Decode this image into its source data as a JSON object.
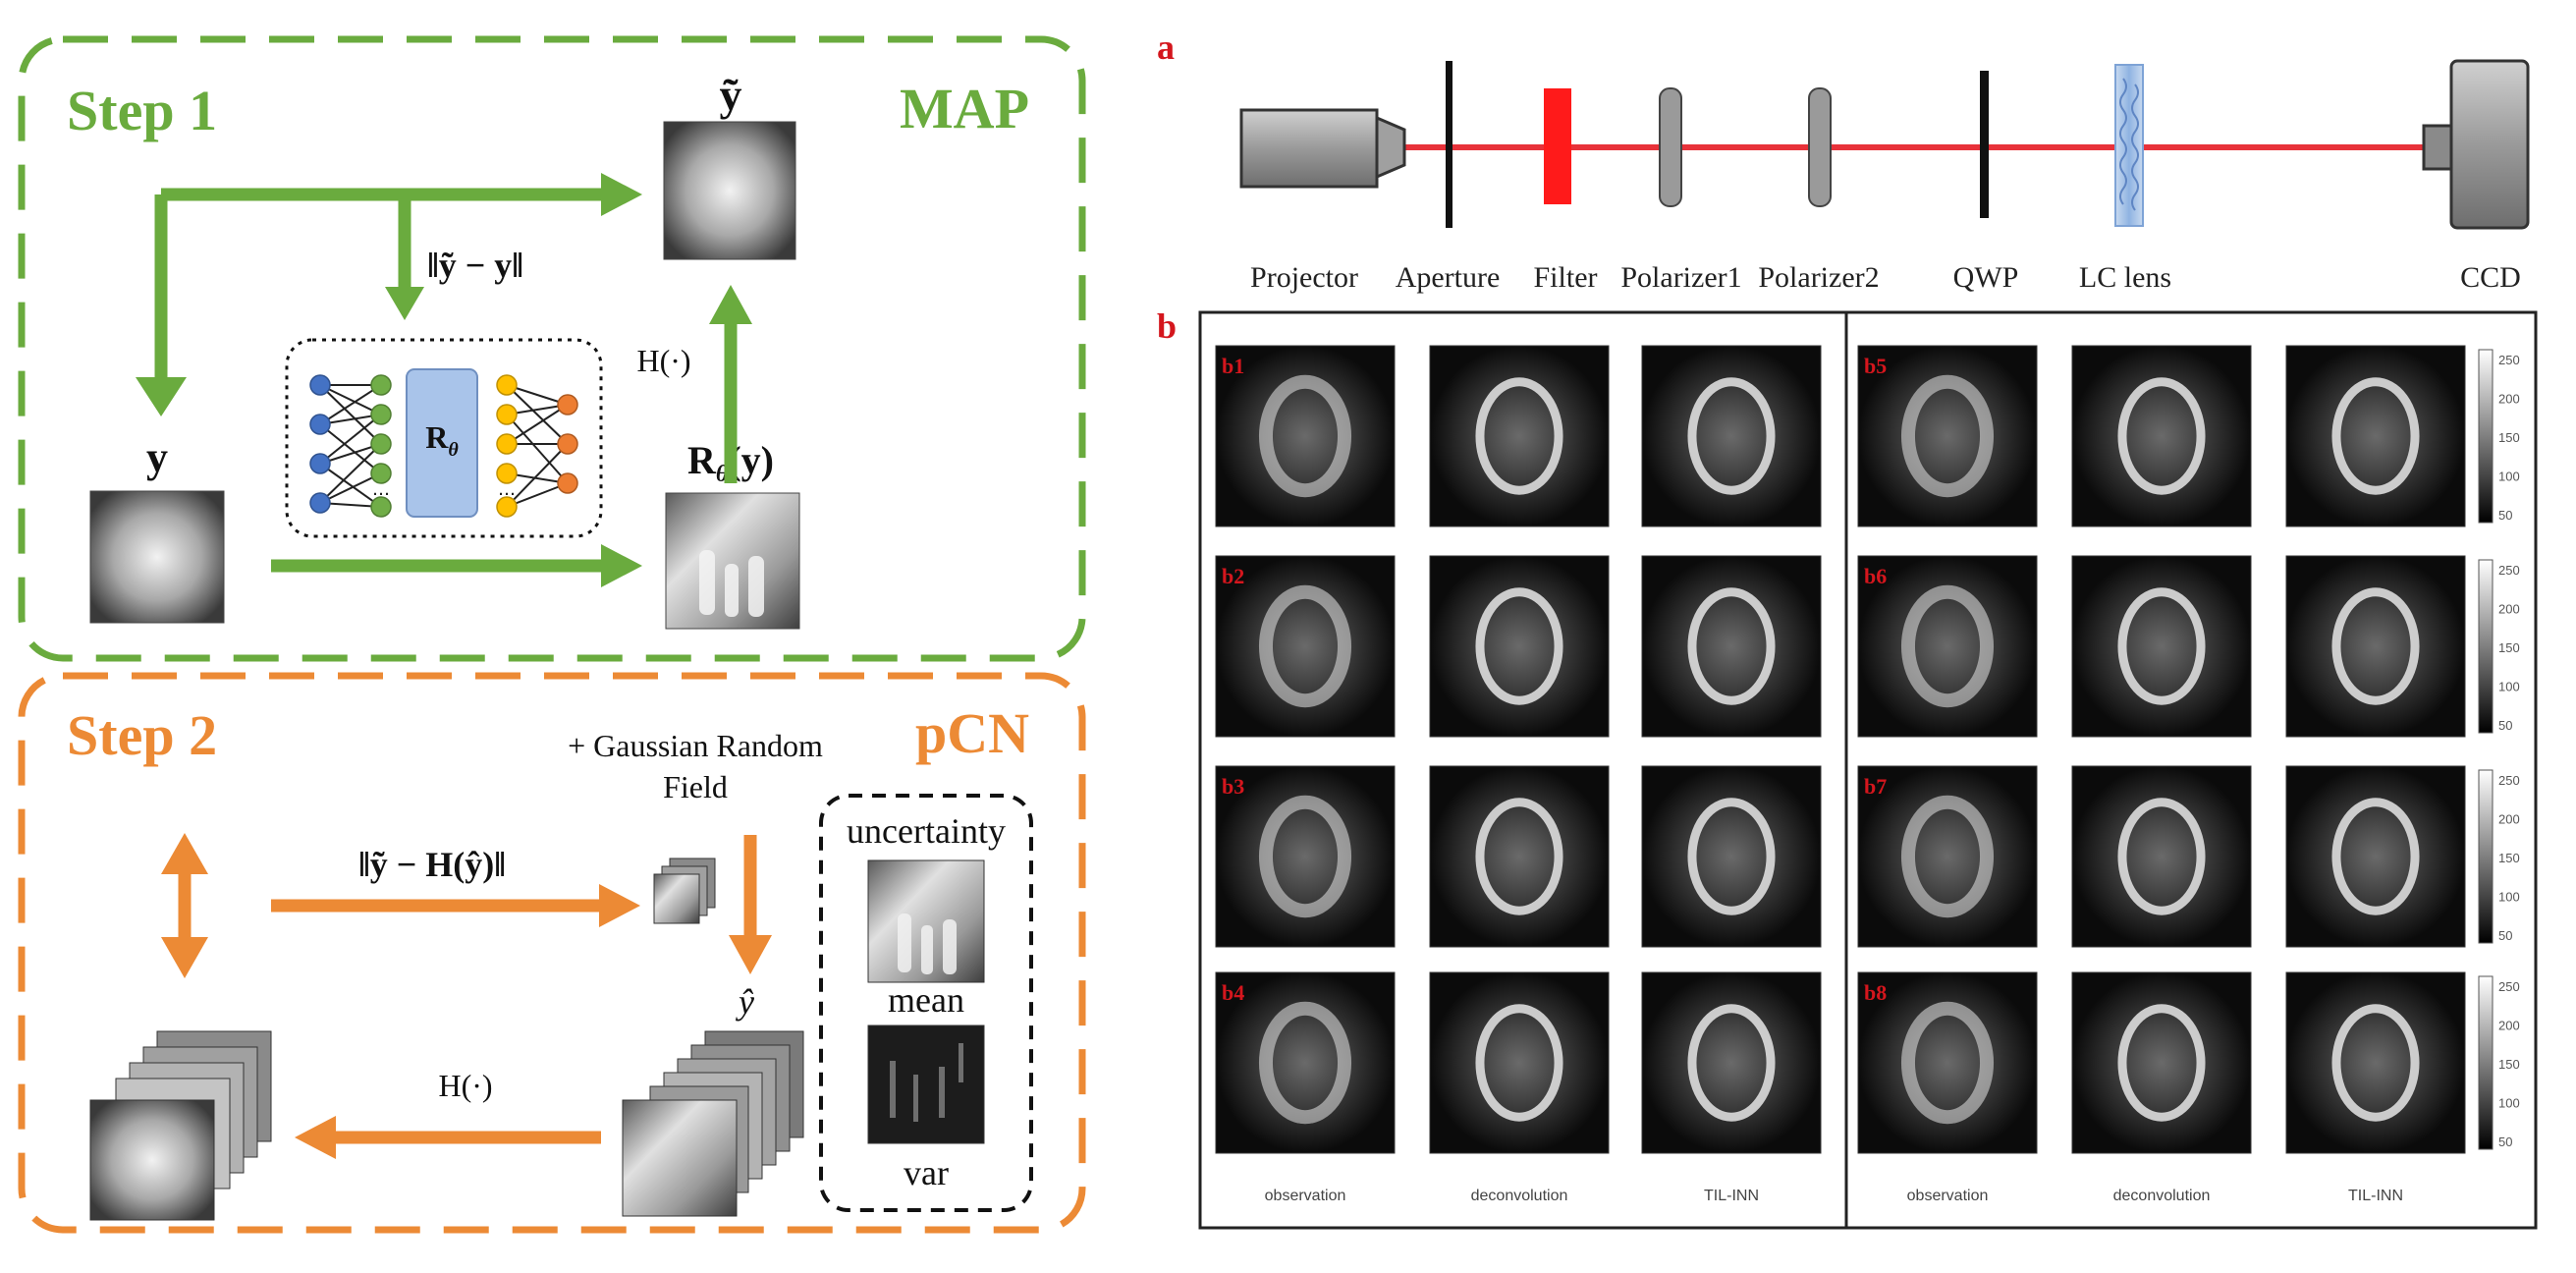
{
  "colors": {
    "green": "#6aab3e",
    "orange": "#ec8a35",
    "laser": "#e8323a",
    "panel_label": "#d4161d",
    "node_blue": "#4472c4",
    "node_green": "#70ad47",
    "node_yellow": "#ffc000",
    "node_orange": "#ed7d31",
    "network_box": "#a9c4ea"
  },
  "left": {
    "step1": {
      "title": "Step 1",
      "method": "MAP",
      "y_tilde_label": "ỹ",
      "y_label": "y",
      "residual_label": "‖ỹ − y‖",
      "operator_label": "H(·)",
      "network_label": "R",
      "network_subscript": "θ",
      "network_dots": "…",
      "output_label": "R",
      "output_subscript": "θ",
      "output_arg": "(y)"
    },
    "step2": {
      "title": "Step 2",
      "method": "pCN",
      "grf_line1": "+ Gaussian Random",
      "grf_line2": "Field",
      "residual_label": "‖ỹ − H(ŷ)‖",
      "y_hat_label": "ŷ",
      "operator_label": "H(·)",
      "uncertainty_label": "uncertainty",
      "mean_label": "mean",
      "var_label": "var"
    }
  },
  "right": {
    "panel_a_label": "a",
    "panel_b_label": "b",
    "components": [
      "Projector",
      "Aperture",
      "Filter",
      "Polarizer1",
      "Polarizer2",
      "QWP",
      "LC lens",
      "CCD"
    ],
    "panel_ids": [
      "b1",
      "b2",
      "b3",
      "b4",
      "b5",
      "b6",
      "b7",
      "b8"
    ],
    "column_labels": [
      "observation",
      "deconvolution",
      "TIL-INN",
      "observation",
      "deconvolution",
      "TIL-INN"
    ],
    "colorbar_ticks": [
      "250",
      "200",
      "150",
      "100",
      "50"
    ]
  }
}
